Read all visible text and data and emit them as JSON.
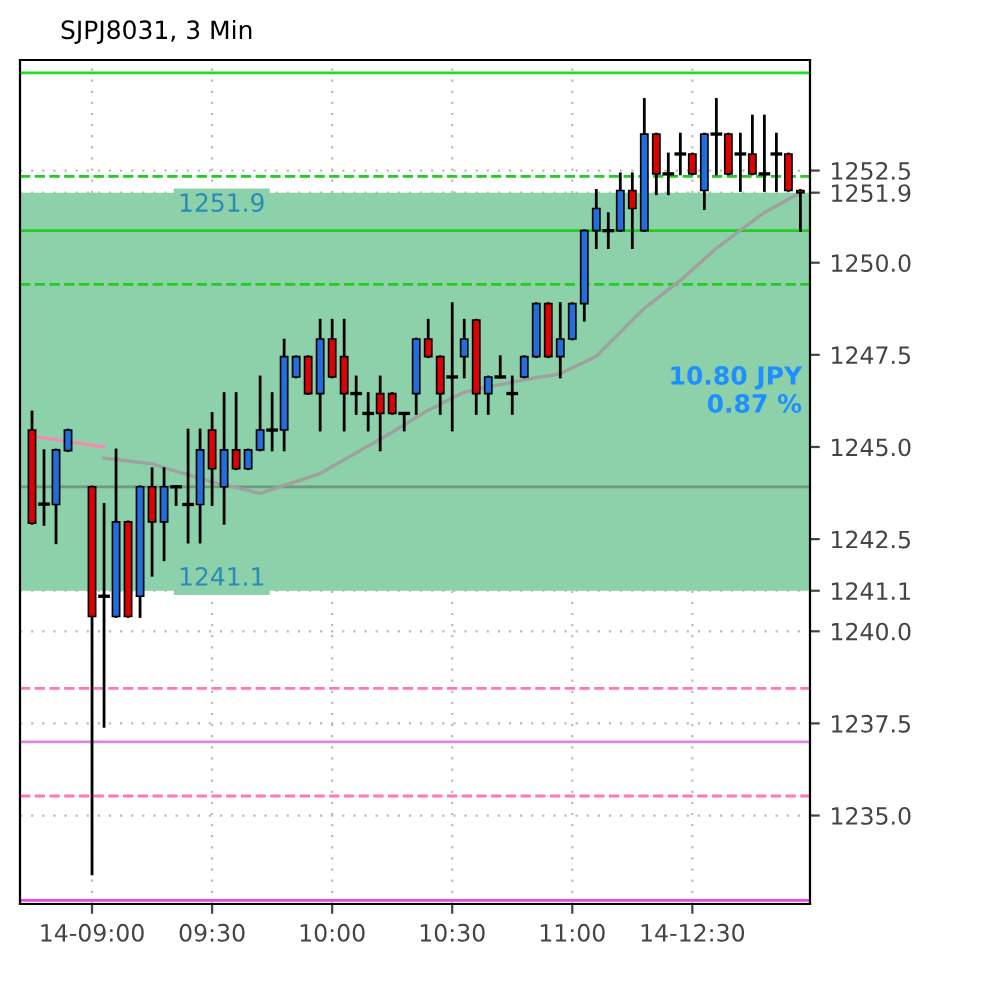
{
  "chart_data": {
    "type": "candlestick",
    "title": "SJPJ8031, 3 Min",
    "categories": [
      null,
      null,
      null,
      null,
      null,
      "14-09:00",
      null,
      null,
      null,
      null,
      null,
      null,
      null,
      null,
      null,
      "09:30",
      null,
      null,
      null,
      null,
      null,
      null,
      null,
      null,
      null,
      "10:00",
      null,
      null,
      null,
      null,
      null,
      null,
      null,
      null,
      null,
      "10:30",
      null,
      null,
      null,
      null,
      null,
      null,
      null,
      null,
      null,
      "11:00",
      null,
      null,
      null,
      null,
      null,
      null,
      null,
      null,
      null,
      "14-12:30",
      null,
      null,
      null,
      null,
      null,
      null,
      null,
      null,
      null
    ],
    "ohlc": [
      [
        1245.46,
        1245.95,
        1242.93,
        1242.93
      ],
      [
        1243.45,
        1244.9,
        1242.9,
        1243.45
      ],
      [
        1243.44,
        1244.92,
        1242.4,
        1244.92
      ],
      [
        1244.9,
        1245.46,
        1244.9,
        1245.46
      ],
      null,
      [
        1243.92,
        1243.92,
        1233.42,
        1240.4
      ],
      [
        1240.95,
        1243.44,
        1237.42,
        1240.95
      ],
      [
        1240.4,
        1244.92,
        1240.4,
        1242.97
      ],
      [
        1242.97,
        1242.97,
        1240.4,
        1240.4
      ],
      [
        1240.95,
        1243.92,
        1240.4,
        1243.92
      ],
      [
        1243.92,
        1244.41,
        1241.52,
        1242.97
      ],
      [
        1242.97,
        1244.41,
        1241.94,
        1243.92
      ],
      [
        1243.92,
        1243.92,
        1243.44,
        1243.92
      ],
      [
        1243.44,
        1245.46,
        1242.42,
        1243.44
      ],
      [
        1243.44,
        1245.46,
        1242.42,
        1244.92
      ],
      [
        1245.46,
        1245.91,
        1243.44,
        1244.41
      ],
      [
        1243.92,
        1246.45,
        1242.93,
        1244.92
      ],
      [
        1244.92,
        1246.45,
        1244.41,
        1244.41
      ],
      [
        1244.41,
        1244.92,
        1244.41,
        1244.92
      ],
      [
        1244.92,
        1246.9,
        1244.92,
        1245.46
      ],
      [
        1245.46,
        1246.45,
        1244.92,
        1245.46
      ],
      [
        1245.46,
        1247.9,
        1244.92,
        1247.45
      ],
      [
        1246.9,
        1247.45,
        1246.9,
        1247.45
      ],
      [
        1247.45,
        1247.45,
        1246.45,
        1246.45
      ],
      [
        1246.45,
        1248.44,
        1245.46,
        1247.93
      ],
      [
        1247.93,
        1248.44,
        1246.9,
        1246.9
      ],
      [
        1247.45,
        1248.44,
        1245.46,
        1246.45
      ],
      [
        1246.45,
        1246.9,
        1245.91,
        1246.45
      ],
      [
        1245.91,
        1246.45,
        1245.46,
        1245.91
      ],
      [
        1246.45,
        1246.9,
        1244.92,
        1245.91
      ],
      [
        1246.45,
        1246.45,
        1245.91,
        1245.91
      ],
      [
        1245.91,
        1245.91,
        1245.46,
        1245.91
      ],
      [
        1246.45,
        1247.93,
        1245.91,
        1247.93
      ],
      [
        1247.93,
        1248.44,
        1247.45,
        1247.45
      ],
      [
        1247.45,
        1247.45,
        1245.91,
        1246.45
      ],
      [
        1246.9,
        1248.89,
        1245.46,
        1246.9
      ],
      [
        1247.45,
        1248.44,
        1246.9,
        1247.93
      ],
      [
        1248.44,
        1248.44,
        1245.91,
        1246.45
      ],
      [
        1246.45,
        1246.9,
        1245.91,
        1246.9
      ],
      [
        1246.9,
        1247.45,
        1246.9,
        1246.9
      ],
      [
        1246.45,
        1246.9,
        1245.91,
        1246.45
      ],
      [
        1246.9,
        1247.45,
        1246.9,
        1247.45
      ],
      [
        1247.45,
        1248.89,
        1247.45,
        1248.89
      ],
      [
        1248.89,
        1248.89,
        1247.45,
        1247.45
      ],
      [
        1247.45,
        1248.89,
        1246.9,
        1247.93
      ],
      [
        1247.93,
        1248.89,
        1247.93,
        1248.89
      ],
      [
        1248.89,
        1250.87,
        1248.44,
        1250.87
      ],
      [
        1250.87,
        1251.96,
        1250.41,
        1251.47
      ],
      [
        1250.87,
        1251.33,
        1250.41,
        1250.87
      ],
      [
        1250.87,
        1252.41,
        1250.87,
        1251.96
      ],
      [
        1251.96,
        1252.41,
        1250.41,
        1251.47
      ],
      [
        1250.87,
        1254.43,
        1250.87,
        1253.49
      ],
      [
        1253.49,
        1253.49,
        1251.87,
        1252.41
      ],
      [
        1252.41,
        1252.95,
        1251.87,
        1252.41
      ],
      [
        1252.95,
        1253.49,
        1252.41,
        1252.95
      ],
      [
        1252.95,
        1252.95,
        1252.41,
        1252.41
      ],
      [
        1251.96,
        1253.49,
        1251.47,
        1253.49
      ],
      [
        1253.49,
        1254.43,
        1252.41,
        1253.49
      ],
      [
        1253.49,
        1253.49,
        1252.41,
        1252.41
      ],
      [
        1252.95,
        1253.49,
        1251.96,
        1252.95
      ],
      [
        1252.95,
        1253.98,
        1252.41,
        1252.41
      ],
      [
        1252.41,
        1253.98,
        1251.96,
        1252.41
      ],
      [
        1252.95,
        1253.49,
        1251.96,
        1252.95
      ],
      [
        1252.95,
        1252.95,
        1251.96,
        1251.96
      ],
      [
        1251.96,
        1251.96,
        1250.87,
        1251.9
      ]
    ],
    "colors": [
      "#e00000",
      "#000000",
      "#1e6fe0",
      "#1e6fe0",
      null,
      "#e00000",
      "#000000",
      "#1e6fe0",
      "#e00000",
      "#1e6fe0",
      "#e00000",
      "#1e6fe0",
      "#000000",
      "#000000",
      "#1e6fe0",
      "#e00000",
      "#1e6fe0",
      "#e00000",
      "#1e6fe0",
      "#1e6fe0",
      "#000000",
      "#1e6fe0",
      "#1e6fe0",
      "#e00000",
      "#1e6fe0",
      "#e00000",
      "#e00000",
      "#000000",
      "#000000",
      "#e00000",
      "#e00000",
      "#000000",
      "#1e6fe0",
      "#e00000",
      "#e00000",
      "#000000",
      "#1e6fe0",
      "#e00000",
      "#1e6fe0",
      "#000000",
      "#000000",
      "#1e6fe0",
      "#1e6fe0",
      "#e00000",
      "#1e6fe0",
      "#1e6fe0",
      "#1e6fe0",
      "#1e6fe0",
      "#000000",
      "#1e6fe0",
      "#e00000",
      "#1e6fe0",
      "#e00000",
      "#000000",
      "#000000",
      "#e00000",
      "#1e6fe0",
      "#000000",
      "#e00000",
      "#000000",
      "#e00000",
      "#000000",
      "#000000",
      "#e00000",
      "#e00000"
    ],
    "series": [
      {
        "type": "line",
        "color": "#f08cb4",
        "values": [
          1245.3,
          1245.25,
          1245.2,
          1245.15,
          1245.1,
          1245.05,
          1245.0,
          null,
          null,
          null,
          null,
          null,
          null,
          null,
          null,
          null,
          null,
          null,
          null,
          null,
          null,
          null,
          null,
          null,
          null,
          null,
          null,
          null,
          null,
          null,
          null,
          null,
          null,
          null,
          null,
          null,
          null,
          null,
          null,
          null,
          null,
          null,
          null,
          null,
          null,
          null,
          null,
          null,
          null,
          null,
          null,
          null,
          null,
          null,
          null,
          null,
          null,
          null,
          null,
          null,
          null,
          null,
          null,
          null,
          null
        ]
      },
      {
        "type": "line",
        "color": "#a0a0a0",
        "values": [
          null,
          null,
          null,
          null,
          null,
          null,
          1244.7,
          1244.66,
          1244.62,
          1244.58,
          1244.54,
          1244.44,
          1244.34,
          1244.25,
          1244.15,
          1244.05,
          1243.97,
          1243.9,
          1243.82,
          1243.74,
          1243.85,
          1243.96,
          1244.06,
          1244.17,
          1244.28,
          1244.47,
          1244.65,
          1244.84,
          1245.03,
          1245.21,
          1245.4,
          1245.6,
          1245.8,
          1246.0,
          1246.16,
          1246.33,
          1246.49,
          1246.56,
          1246.63,
          1246.69,
          1246.76,
          1246.82,
          1246.88,
          1246.93,
          1246.99,
          1247.15,
          1247.3,
          1247.46,
          1247.79,
          1248.11,
          1248.44,
          1248.76,
          1249.01,
          1249.27,
          1249.52,
          1249.81,
          1250.1,
          1250.39,
          1250.63,
          1250.88,
          1251.12,
          1251.36,
          1251.54,
          1251.72,
          1251.9
        ]
      }
    ],
    "ylim": [
      1232.6,
      1255.5
    ],
    "yticks": [
      {
        "value": 1235,
        "label": "1235.0"
      },
      {
        "value": 1237.5,
        "label": "1237.5"
      },
      {
        "value": 1240,
        "label": "1240.0"
      },
      {
        "value": 1241.1,
        "label": "1241.1"
      },
      {
        "value": 1242.5,
        "label": "1242.5"
      },
      {
        "value": 1245,
        "label": "1245.0"
      },
      {
        "value": 1247.5,
        "label": "1247.5"
      },
      {
        "value": 1250,
        "label": "1250.0"
      },
      {
        "value": 1251.9,
        "label": "1251.9"
      },
      {
        "value": 1252.5,
        "label": "1252.5"
      }
    ],
    "grid": true,
    "ref_lines": [
      {
        "axis": "y",
        "value": 1255.15,
        "color": "#22dd22",
        "line_style": "solid"
      },
      {
        "axis": "y",
        "value": 1252.34,
        "color": "#22cc22",
        "line_style": "dashed"
      },
      {
        "axis": "y",
        "value": 1250.87,
        "color": "#22cc22",
        "line_style": "solid"
      },
      {
        "axis": "y",
        "value": 1249.41,
        "color": "#22cc22",
        "line_style": "dashed"
      },
      {
        "axis": "y",
        "value": 1243.92,
        "color": "#6f9a7f",
        "line_style": "solid"
      },
      {
        "axis": "y",
        "value": 1238.45,
        "color": "#ff77bb",
        "line_style": "dashed"
      },
      {
        "axis": "y",
        "value": 1237.0,
        "color": "#dd88dd",
        "line_style": "solid"
      },
      {
        "axis": "y",
        "value": 1235.53,
        "color": "#ff77bb",
        "line_style": "dashed"
      },
      {
        "axis": "y",
        "value": 1232.7,
        "color": "#ee44ee",
        "line_style": "solid"
      }
    ],
    "bands": [
      {
        "axis": "y",
        "from": 1241.1,
        "to": 1251.9,
        "label": "10.80 JPY\n0.87 %",
        "color": "#8dd1aa"
      }
    ],
    "annotations": [
      {
        "text": "1251.9",
        "y": 1251.9
      },
      {
        "text": "1241.1",
        "y": 1241.1
      }
    ]
  }
}
